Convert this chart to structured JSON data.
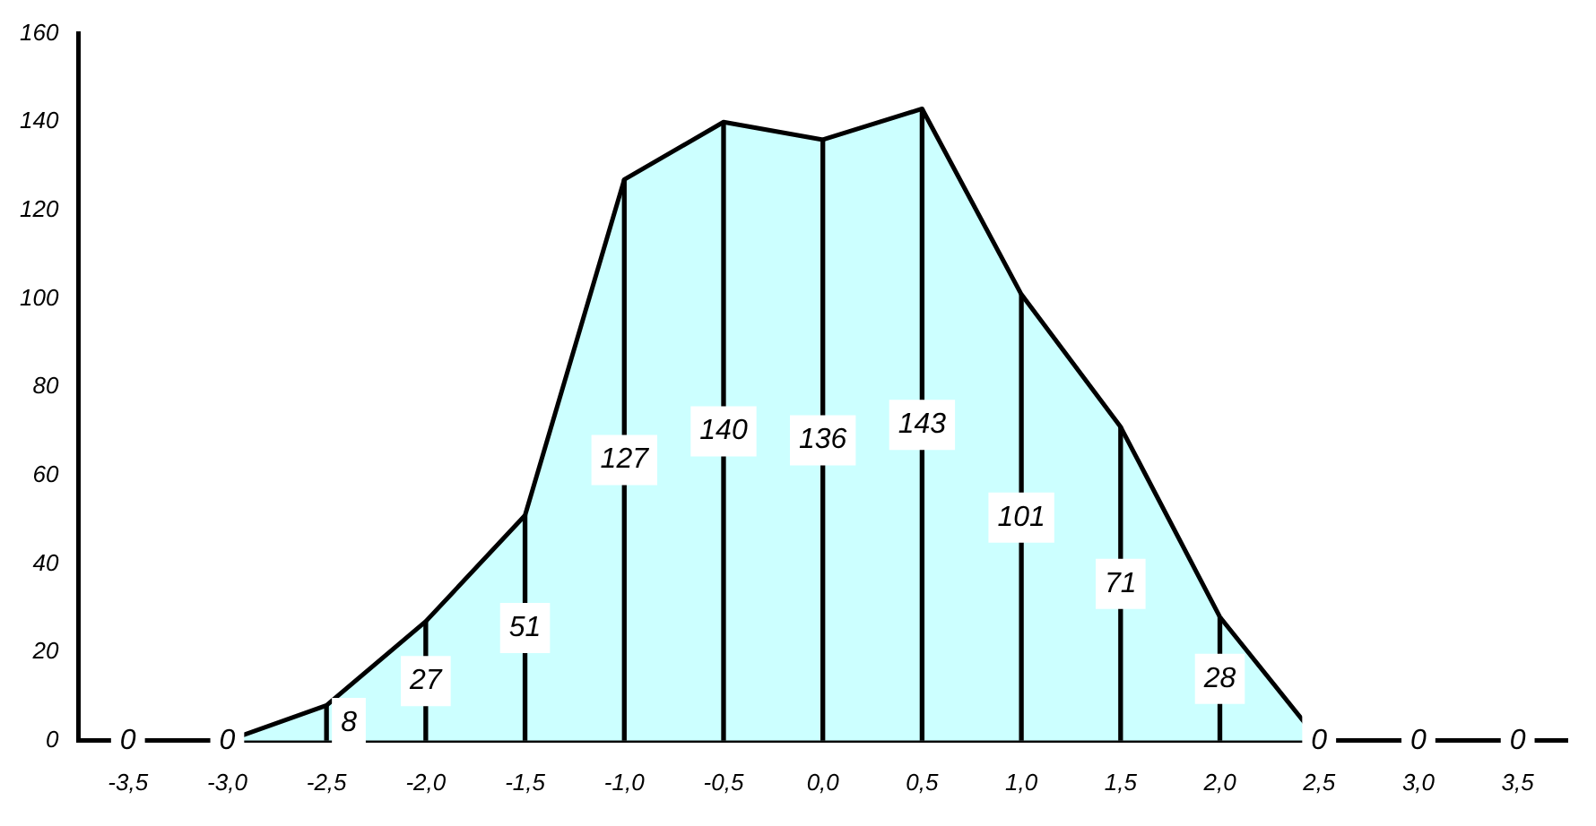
{
  "chart_data": {
    "type": "area",
    "categories": [
      "-3,5",
      "-3,0",
      "-2,5",
      "-2,0",
      "-1,5",
      "-1,0",
      "-0,5",
      "0,0",
      "0,5",
      "1,0",
      "1,5",
      "2,0",
      "2,5",
      "3,0",
      "3,5"
    ],
    "series": [
      {
        "color": "#ccffff",
        "values": [
          0,
          0,
          8,
          27,
          51,
          127,
          140,
          136,
          143,
          101,
          71,
          28,
          0,
          0,
          0
        ]
      },
      {
        "type": "bar",
        "color": "#000000",
        "data_labels": true,
        "values": [
          0,
          0,
          8,
          27,
          51,
          127,
          140,
          136,
          143,
          101,
          71,
          28,
          0,
          0,
          0
        ]
      }
    ],
    "ylim": [
      0,
      160
    ],
    "yticks": [
      0,
      20,
      40,
      60,
      80,
      100,
      120,
      140,
      160
    ],
    "grid": false,
    "legend": false,
    "marker": "none"
  }
}
